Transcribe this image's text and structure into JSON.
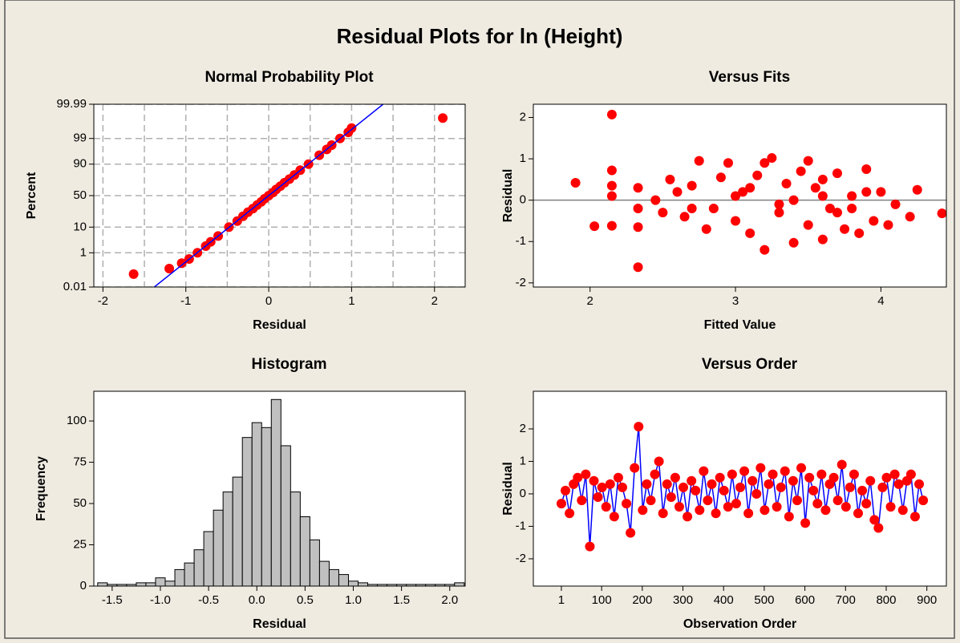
{
  "title": "Residual Plots for ln (Height)",
  "chart_data": [
    {
      "type": "probability",
      "title": "Normal Probability Plot",
      "xlabel": "Residual",
      "ylabel": "Percent",
      "xlim": [
        -2.11,
        2.37
      ],
      "ylim": [
        0.01,
        99.99
      ],
      "yscale": "probability",
      "grid": true,
      "xticks": [
        -2,
        -1,
        0,
        1,
        2
      ],
      "xgrid_minor": [
        -1.5,
        -0.5,
        0.5,
        1.5
      ],
      "yticks": [
        0.01,
        1,
        10,
        50,
        90,
        99,
        99.99
      ],
      "series": [
        {
          "color": "#ff0000",
          "x": [
            -1.63,
            -1.2,
            -1.05,
            -0.96,
            -0.86,
            -0.76,
            -0.7,
            -0.61,
            -0.48,
            -0.38,
            -0.31,
            -0.25,
            -0.19,
            -0.14,
            -0.09,
            -0.05,
            0.0,
            0.05,
            0.09,
            0.14,
            0.19,
            0.25,
            0.31,
            0.38,
            0.48,
            0.61,
            0.7,
            0.76,
            0.86,
            0.96,
            1.0,
            2.1
          ],
          "values": [
            0.07,
            0.15,
            0.3,
            0.5,
            1,
            2,
            3,
            5,
            10,
            15,
            20,
            25,
            30,
            35,
            40,
            45,
            50,
            55,
            60,
            65,
            70,
            75,
            80,
            85,
            90,
            95,
            97,
            98,
            99,
            99.5,
            99.7,
            99.92
          ]
        },
        {
          "color": "#0000ff",
          "style": "line",
          "x": [
            -1.38,
            1.38
          ],
          "values": [
            0.01,
            99.99
          ]
        }
      ]
    },
    {
      "type": "scatter",
      "title": "Versus Fits",
      "xlabel": "Fitted Value",
      "ylabel": "Residual",
      "xlim": [
        1.61,
        4.45
      ],
      "ylim": [
        -2.1,
        2.32
      ],
      "xticks": [
        2,
        3,
        4
      ],
      "yticks": [
        -2,
        -1,
        0,
        1,
        2
      ],
      "hline": 0,
      "hline_color": "#808080",
      "series": [
        {
          "color": "#ff0000",
          "x": [
            1.9,
            2.03,
            2.15,
            2.15,
            2.15,
            2.15,
            2.15,
            2.33,
            2.33,
            2.33,
            2.33,
            2.45,
            2.5,
            2.55,
            2.6,
            2.65,
            2.7,
            2.75,
            2.8,
            2.85,
            2.9,
            2.95,
            3.0,
            3.05,
            3.1,
            3.15,
            3.2,
            3.2,
            3.25,
            3.3,
            3.35,
            3.4,
            3.45,
            3.5,
            3.5,
            3.55,
            3.6,
            3.6,
            3.65,
            3.7,
            3.75,
            3.8,
            3.85,
            3.9,
            3.95,
            4.0,
            4.05,
            4.1,
            4.2,
            4.25,
            4.42,
            3.0,
            3.3,
            3.6,
            3.8,
            2.7,
            3.1,
            3.4,
            3.7,
            3.9
          ],
          "values": [
            0.42,
            -0.63,
            2.07,
            0.72,
            0.35,
            -0.62,
            0.1,
            -1.62,
            -0.65,
            0.3,
            -0.2,
            0.0,
            -0.3,
            0.5,
            0.2,
            -0.4,
            0.35,
            0.95,
            -0.7,
            -0.2,
            0.55,
            0.9,
            -0.5,
            0.2,
            -0.8,
            0.6,
            -1.2,
            0.9,
            1.02,
            -0.3,
            0.4,
            -1.03,
            0.7,
            -0.6,
            0.95,
            0.3,
            -0.95,
            0.5,
            -0.2,
            0.65,
            -0.7,
            0.1,
            -0.8,
            0.75,
            -0.5,
            0.2,
            -0.6,
            -0.1,
            -0.4,
            0.25,
            -0.32,
            0.1,
            -0.1,
            0.1,
            -0.2,
            -0.2,
            0.3,
            0.0,
            -0.3,
            0.2
          ]
        }
      ]
    },
    {
      "type": "histogram",
      "title": "Histogram",
      "xlabel": "Residual",
      "ylabel": "Frequency",
      "xlim": [
        -1.69,
        2.16
      ],
      "ylim": [
        0,
        118
      ],
      "xticks": [
        -1.5,
        {
          "value": -1,
          "label": "-1.0"
        },
        -0.5,
        {
          "value": 0,
          "label": "0.0"
        },
        0.5,
        {
          "value": 1,
          "label": "1.0"
        },
        1.5,
        {
          "value": 2,
          "label": "2.0"
        }
      ],
      "yticks": [
        0,
        25,
        50,
        75,
        100
      ],
      "color": "#c0c0c0",
      "bins": [
        -1.65,
        -1.55,
        -1.45,
        -1.35,
        -1.25,
        -1.15,
        -1.05,
        -0.95,
        -0.85,
        -0.75,
        -0.65,
        -0.55,
        -0.45,
        -0.35,
        -0.25,
        -0.15,
        -0.05,
        0.05,
        0.15,
        0.25,
        0.35,
        0.45,
        0.55,
        0.65,
        0.75,
        0.85,
        0.95,
        1.05,
        1.15,
        1.25,
        1.35,
        1.45,
        1.55,
        1.65,
        1.75,
        1.85,
        1.95,
        2.05,
        2.15
      ],
      "values": [
        2,
        1,
        1,
        1,
        2,
        2,
        5,
        3,
        10,
        14,
        22,
        33,
        46,
        57,
        66,
        90,
        99,
        96,
        113,
        85,
        57,
        42,
        28,
        15,
        10,
        7,
        3,
        2,
        1,
        1,
        1,
        1,
        1,
        1,
        1,
        1,
        1,
        2
      ]
    },
    {
      "type": "order",
      "title": "Versus Order",
      "xlabel": "Observation Order",
      "ylabel": "Residual",
      "xlim": [
        -68,
        948
      ],
      "ylim": [
        -2.84,
        3.16
      ],
      "xticks": [
        1,
        100,
        200,
        300,
        400,
        500,
        600,
        700,
        800,
        900
      ],
      "yticks": [
        -2,
        -1,
        0,
        1,
        2
      ],
      "series": [
        {
          "color": "#ff0000",
          "line_color": "#0000ff",
          "x": [
            1,
            11,
            21,
            31,
            41,
            51,
            61,
            71,
            81,
            91,
            101,
            111,
            121,
            131,
            141,
            151,
            161,
            171,
            181,
            191,
            201,
            211,
            221,
            231,
            241,
            251,
            261,
            271,
            281,
            291,
            301,
            311,
            321,
            331,
            341,
            351,
            361,
            371,
            381,
            391,
            401,
            411,
            421,
            431,
            441,
            451,
            461,
            471,
            481,
            491,
            501,
            511,
            521,
            531,
            541,
            551,
            561,
            571,
            581,
            591,
            601,
            611,
            621,
            631,
            641,
            651,
            661,
            671,
            681,
            691,
            701,
            711,
            721,
            731,
            741,
            751,
            761,
            771,
            781,
            791,
            801,
            811,
            821,
            831,
            841,
            851,
            861,
            871,
            881,
            891
          ],
          "values": [
            -0.3,
            0.1,
            -0.6,
            0.3,
            0.5,
            -0.2,
            0.6,
            -1.62,
            0.4,
            -0.1,
            0.2,
            -0.4,
            0.3,
            -0.7,
            0.5,
            0.2,
            -0.3,
            -1.2,
            0.8,
            2.07,
            -0.5,
            0.3,
            -0.2,
            0.6,
            1.0,
            -0.6,
            0.3,
            -0.1,
            0.5,
            -0.4,
            0.2,
            -0.7,
            0.4,
            0.1,
            -0.5,
            0.7,
            -0.2,
            0.3,
            -0.6,
            0.5,
            0.1,
            -0.4,
            0.6,
            -0.3,
            0.2,
            0.7,
            -0.6,
            0.4,
            0.0,
            0.8,
            -0.5,
            0.3,
            0.6,
            -0.4,
            0.2,
            0.7,
            -0.7,
            0.4,
            -0.2,
            0.8,
            -0.9,
            0.5,
            0.1,
            -0.3,
            0.6,
            -0.5,
            0.3,
            0.5,
            -0.2,
            0.9,
            -0.4,
            0.2,
            0.6,
            -0.6,
            0.1,
            -0.3,
            0.4,
            -0.8,
            -1.05,
            0.2,
            0.5,
            -0.4,
            0.6,
            0.3,
            -0.5,
            0.4,
            0.6,
            -0.7,
            0.3,
            -0.2
          ]
        }
      ]
    }
  ]
}
